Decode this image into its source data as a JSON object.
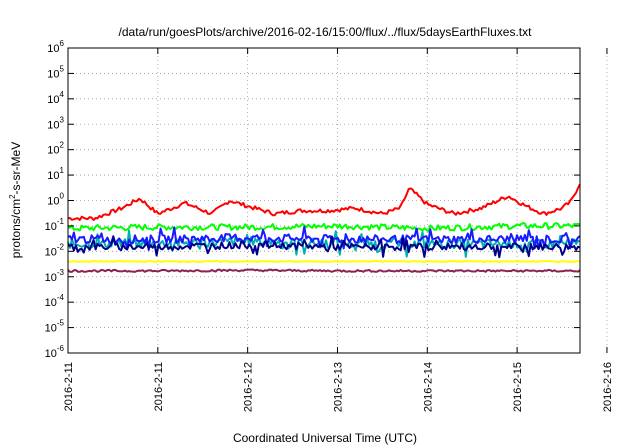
{
  "chart_data": {
    "type": "line",
    "title": "/data/run/goesPlots/archive/2016-02-16/15:00/flux/../flux/5daysEarthFluxes.txt",
    "xlabel": "Coordinated Universal Time (UTC)",
    "ylabel": {
      "pre": "protons/cm",
      "sup": "2",
      "post": "-s-sr-MeV"
    },
    "y_scale": "log",
    "ylim": [
      1e-06,
      1000000.0
    ],
    "y_ticks": [
      {
        "base": "10",
        "exp": "-6",
        "value": 1e-06
      },
      {
        "base": "10",
        "exp": "-5",
        "value": 1e-05
      },
      {
        "base": "10",
        "exp": "-4",
        "value": 0.0001
      },
      {
        "base": "10",
        "exp": "-3",
        "value": 0.001
      },
      {
        "base": "10",
        "exp": "-2",
        "value": 0.01
      },
      {
        "base": "10",
        "exp": "-1",
        "value": 0.1
      },
      {
        "base": "10",
        "exp": "0",
        "value": 1
      },
      {
        "base": "10",
        "exp": "1",
        "value": 10
      },
      {
        "base": "10",
        "exp": "2",
        "value": 100
      },
      {
        "base": "10",
        "exp": "3",
        "value": 1000
      },
      {
        "base": "10",
        "exp": "4",
        "value": 10000
      },
      {
        "base": "10",
        "exp": "5",
        "value": 100000
      },
      {
        "base": "10",
        "exp": "6",
        "value": 1000000
      }
    ],
    "x_ticks": [
      "2016-2-11",
      "2016-2-12",
      "2016-2-13",
      "2016-2-14",
      "2016-2-15",
      "2016-2-16"
    ],
    "x_range_days": [
      0,
      5.7
    ],
    "grid": true,
    "series": [
      {
        "color": "#ff0000",
        "x": [
          0,
          0.3,
          0.6,
          0.8,
          1.0,
          1.3,
          1.6,
          1.8,
          2.0,
          2.3,
          2.6,
          2.9,
          3.2,
          3.5,
          3.7,
          3.8,
          4.0,
          4.3,
          4.6,
          4.9,
          5.1,
          5.3,
          5.5,
          5.6,
          5.7
        ],
        "y": [
          0.2,
          0.2,
          0.5,
          1.2,
          0.3,
          0.8,
          0.3,
          1.0,
          0.6,
          0.3,
          0.4,
          0.4,
          0.5,
          0.3,
          0.5,
          3.0,
          0.7,
          0.3,
          0.5,
          1.5,
          0.6,
          0.3,
          0.5,
          0.9,
          5.0
        ]
      },
      {
        "color": "#00ff00",
        "x": [
          0,
          1,
          2,
          3,
          4,
          5,
          5.7
        ],
        "y": [
          0.08,
          0.09,
          0.09,
          0.1,
          0.08,
          0.1,
          0.1
        ]
      },
      {
        "color": "#00b0b0",
        "x": [
          0,
          1,
          2,
          3,
          4,
          5,
          5.7
        ],
        "y": [
          0.02,
          0.02,
          0.025,
          0.02,
          0.02,
          0.02,
          0.02
        ]
      },
      {
        "color": "#1a1aff",
        "x": [
          0,
          1,
          2,
          3,
          4,
          5,
          5.7
        ],
        "y": [
          0.03,
          0.03,
          0.035,
          0.03,
          0.03,
          0.03,
          0.03
        ]
      },
      {
        "color": "#00008b",
        "x": [
          0,
          1,
          2,
          3,
          4,
          5,
          5.7
        ],
        "y": [
          0.015,
          0.015,
          0.018,
          0.015,
          0.015,
          0.015,
          0.015
        ]
      },
      {
        "color": "#ffff00",
        "x": [
          0,
          1,
          2,
          3,
          4,
          5,
          5.7
        ],
        "y": [
          0.004,
          0.004,
          0.004,
          0.004,
          0.004,
          0.004,
          0.004
        ]
      },
      {
        "color": "#8b2252",
        "x": [
          0,
          1,
          2,
          3,
          4,
          5,
          5.7
        ],
        "y": [
          0.0017,
          0.0017,
          0.0018,
          0.0017,
          0.0017,
          0.0017,
          0.0017
        ]
      }
    ]
  }
}
